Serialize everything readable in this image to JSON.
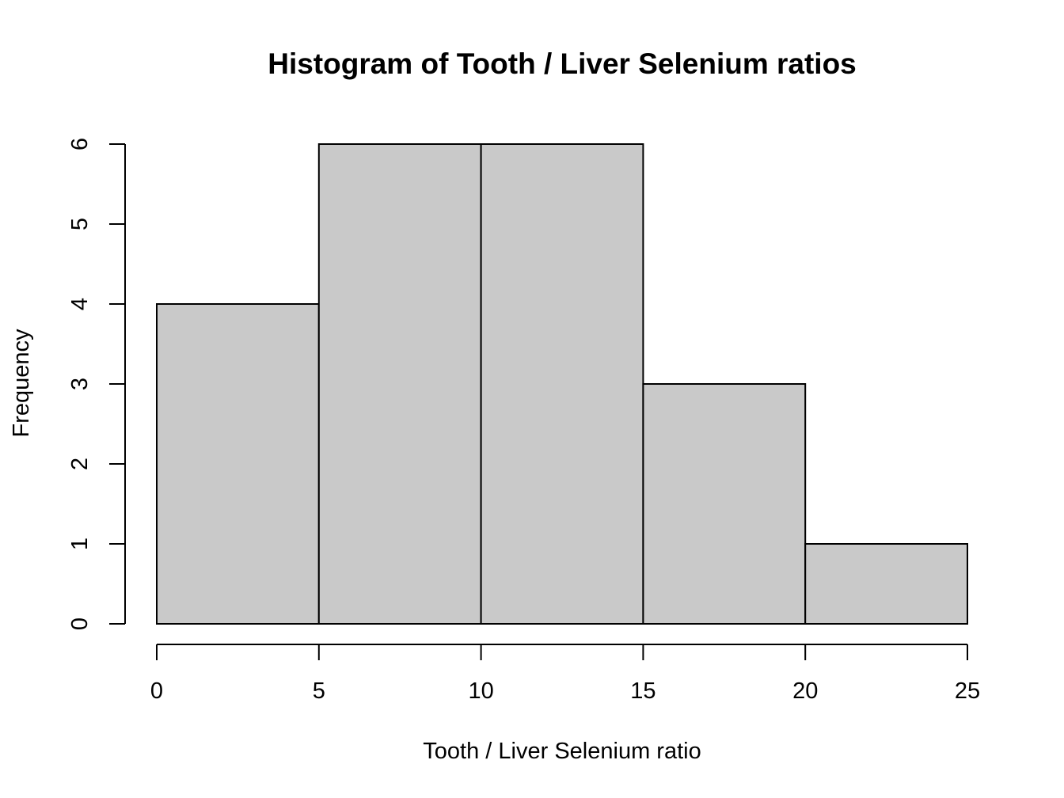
{
  "chart_data": {
    "type": "bar",
    "subtype": "histogram",
    "title": "Histogram of Tooth / Liver Selenium ratios",
    "xlabel": "Tooth / Liver Selenium ratio",
    "ylabel": "Frequency",
    "bins": [
      {
        "start": 0,
        "end": 5,
        "count": 4
      },
      {
        "start": 5,
        "end": 10,
        "count": 6
      },
      {
        "start": 10,
        "end": 15,
        "count": 6
      },
      {
        "start": 15,
        "end": 20,
        "count": 3
      },
      {
        "start": 20,
        "end": 25,
        "count": 1
      }
    ],
    "xlim": [
      0,
      25
    ],
    "ylim": [
      0,
      6
    ],
    "x_ticks": [
      0,
      5,
      10,
      15,
      20,
      25
    ],
    "y_ticks": [
      0,
      1,
      2,
      3,
      4,
      5,
      6
    ],
    "bar_color": "#c9c9c9",
    "edge_color": "#000000",
    "grid": false
  }
}
